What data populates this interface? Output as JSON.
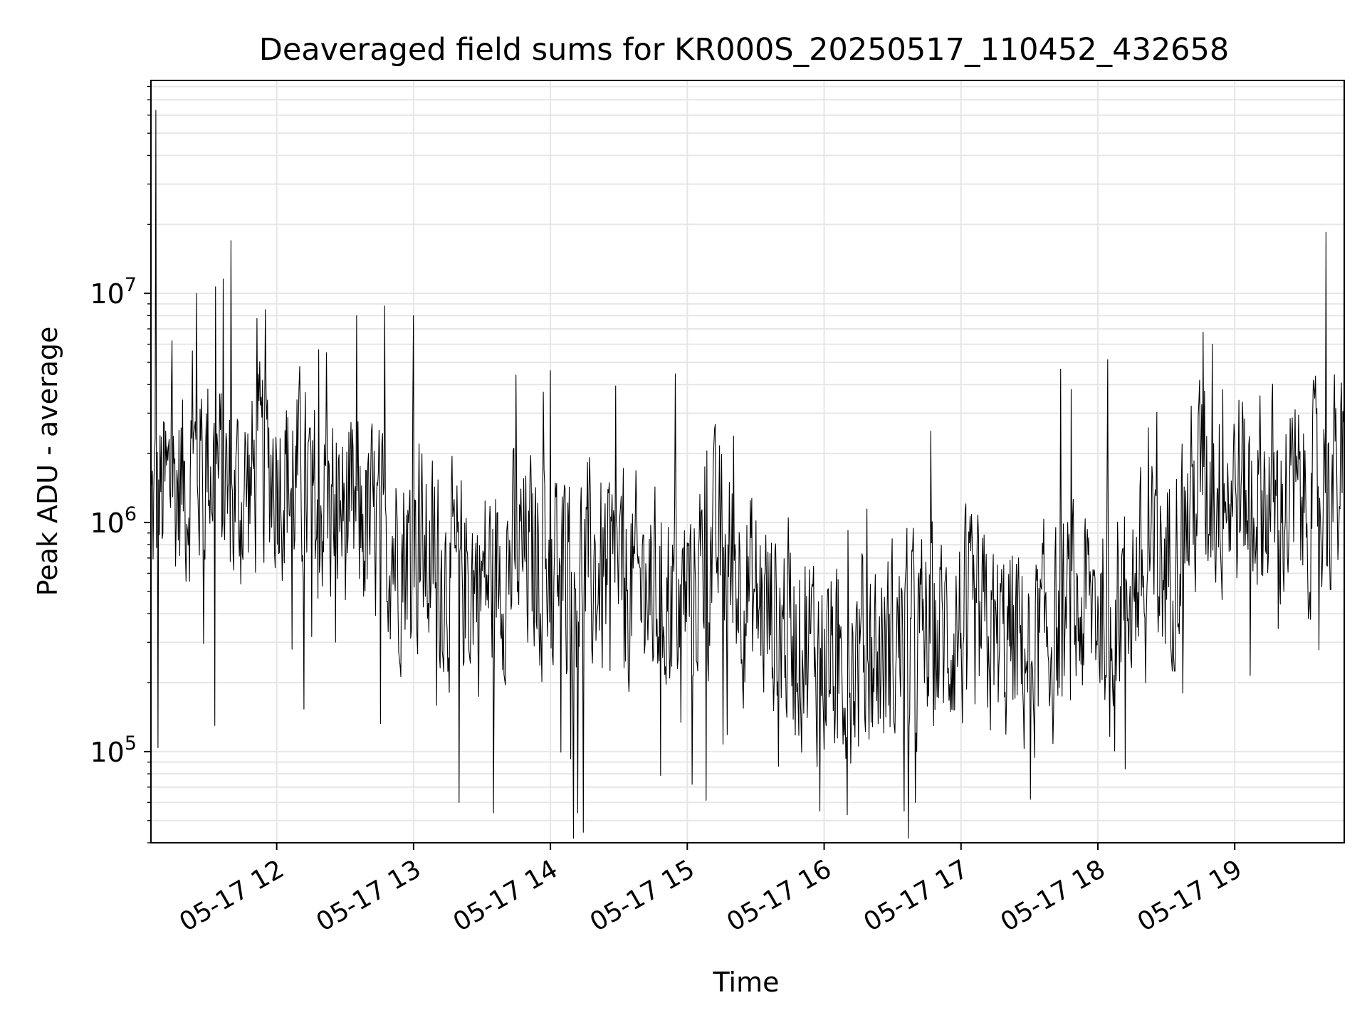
{
  "chart_data": {
    "type": "line",
    "title": "Deaveraged field sums for KR000S_20250517_110452_432658",
    "xlabel": "Time",
    "ylabel": "Peak ADU - average",
    "yscale": "log",
    "ylim": [
      40000,
      85000000
    ],
    "xlim": [
      "2025-05-17 11:04:52",
      "2025-05-17 19:48:00"
    ],
    "grid": true,
    "x_ticks": [
      {
        "label": "05-17 12",
        "time": "2025-05-17 12:00"
      },
      {
        "label": "05-17 13",
        "time": "2025-05-17 13:00"
      },
      {
        "label": "05-17 14",
        "time": "2025-05-17 14:00"
      },
      {
        "label": "05-17 15",
        "time": "2025-05-17 15:00"
      },
      {
        "label": "05-17 16",
        "time": "2025-05-17 16:00"
      },
      {
        "label": "05-17 17",
        "time": "2025-05-17 17:00"
      },
      {
        "label": "05-17 18",
        "time": "2025-05-17 18:00"
      },
      {
        "label": "05-17 19",
        "time": "2025-05-17 19:00"
      }
    ],
    "y_ticks": [
      {
        "base": "10",
        "exp": "5",
        "value": 100000
      },
      {
        "base": "10",
        "exp": "6",
        "value": 1000000
      },
      {
        "base": "10",
        "exp": "7",
        "value": 10000000
      }
    ],
    "line_color": "#000000",
    "grid_color": "#e6e6e6",
    "series": [
      {
        "x": [
          "2025-05-17 11:04",
          "2025-05-17 11:10",
          "2025-05-17 11:20",
          "2025-05-17 11:30",
          "2025-05-17 11:40",
          "2025-05-17 11:50",
          "2025-05-17 12:00",
          "2025-05-17 12:15",
          "2025-05-17 12:30",
          "2025-05-17 12:45",
          "2025-05-17 13:00",
          "2025-05-17 13:15",
          "2025-05-17 13:30",
          "2025-05-17 13:45",
          "2025-05-17 14:00",
          "2025-05-17 14:15",
          "2025-05-17 14:30",
          "2025-05-17 14:45",
          "2025-05-17 15:00",
          "2025-05-17 15:15",
          "2025-05-17 15:30",
          "2025-05-17 15:45",
          "2025-05-17 16:00",
          "2025-05-17 16:15",
          "2025-05-17 16:30",
          "2025-05-17 16:45",
          "2025-05-17 17:00",
          "2025-05-17 17:15",
          "2025-05-17 17:30",
          "2025-05-17 17:45",
          "2025-05-17 18:00",
          "2025-05-17 18:15",
          "2025-05-17 18:30",
          "2025-05-17 18:45",
          "2025-05-17 19:00",
          "2025-05-17 19:15",
          "2025-05-17 19:30",
          "2025-05-17 19:45"
        ],
        "values": [
          1000000,
          1300000,
          1500000,
          2000000,
          1200000,
          1500000,
          1800000,
          1300000,
          1100000,
          900000,
          750000,
          600000,
          550000,
          700000,
          650000,
          600000,
          550000,
          500000,
          500000,
          800000,
          450000,
          350000,
          260000,
          250000,
          280000,
          300000,
          350000,
          300000,
          280000,
          350000,
          450000,
          550000,
          650000,
          1500000,
          1400000,
          1300000,
          1200000,
          1500000
        ],
        "spikes": [
          {
            "time": "2025-05-17 11:07",
            "value": 63000000
          },
          {
            "time": "2025-05-17 11:40",
            "value": 17000000
          },
          {
            "time": "2025-05-17 11:25",
            "value": 10000000
          },
          {
            "time": "2025-05-17 11:55",
            "value": 8500000
          },
          {
            "time": "2025-05-17 12:35",
            "value": 8000000
          },
          {
            "time": "2025-05-17 13:00",
            "value": 8000000
          },
          {
            "time": "2025-05-17 13:45",
            "value": 4400000
          },
          {
            "time": "2025-05-17 14:00",
            "value": 4600000
          },
          {
            "time": "2025-05-17 18:50",
            "value": 6000000
          },
          {
            "time": "2025-05-17 19:40",
            "value": 18500000
          },
          {
            "time": "2025-05-17 11:08",
            "value": 104000
          },
          {
            "time": "2025-05-17 11:33",
            "value": 130000
          },
          {
            "time": "2025-05-17 13:20",
            "value": 60000
          },
          {
            "time": "2025-05-17 13:35",
            "value": 54000
          },
          {
            "time": "2025-05-17 14:12",
            "value": 54000
          },
          {
            "time": "2025-05-17 15:58",
            "value": 55000
          },
          {
            "time": "2025-05-17 16:10",
            "value": 53000
          },
          {
            "time": "2025-05-17 16:35",
            "value": 55000
          },
          {
            "time": "2025-05-17 16:40",
            "value": 60000
          },
          {
            "time": "2025-05-17 18:12",
            "value": 84000
          }
        ]
      }
    ]
  }
}
